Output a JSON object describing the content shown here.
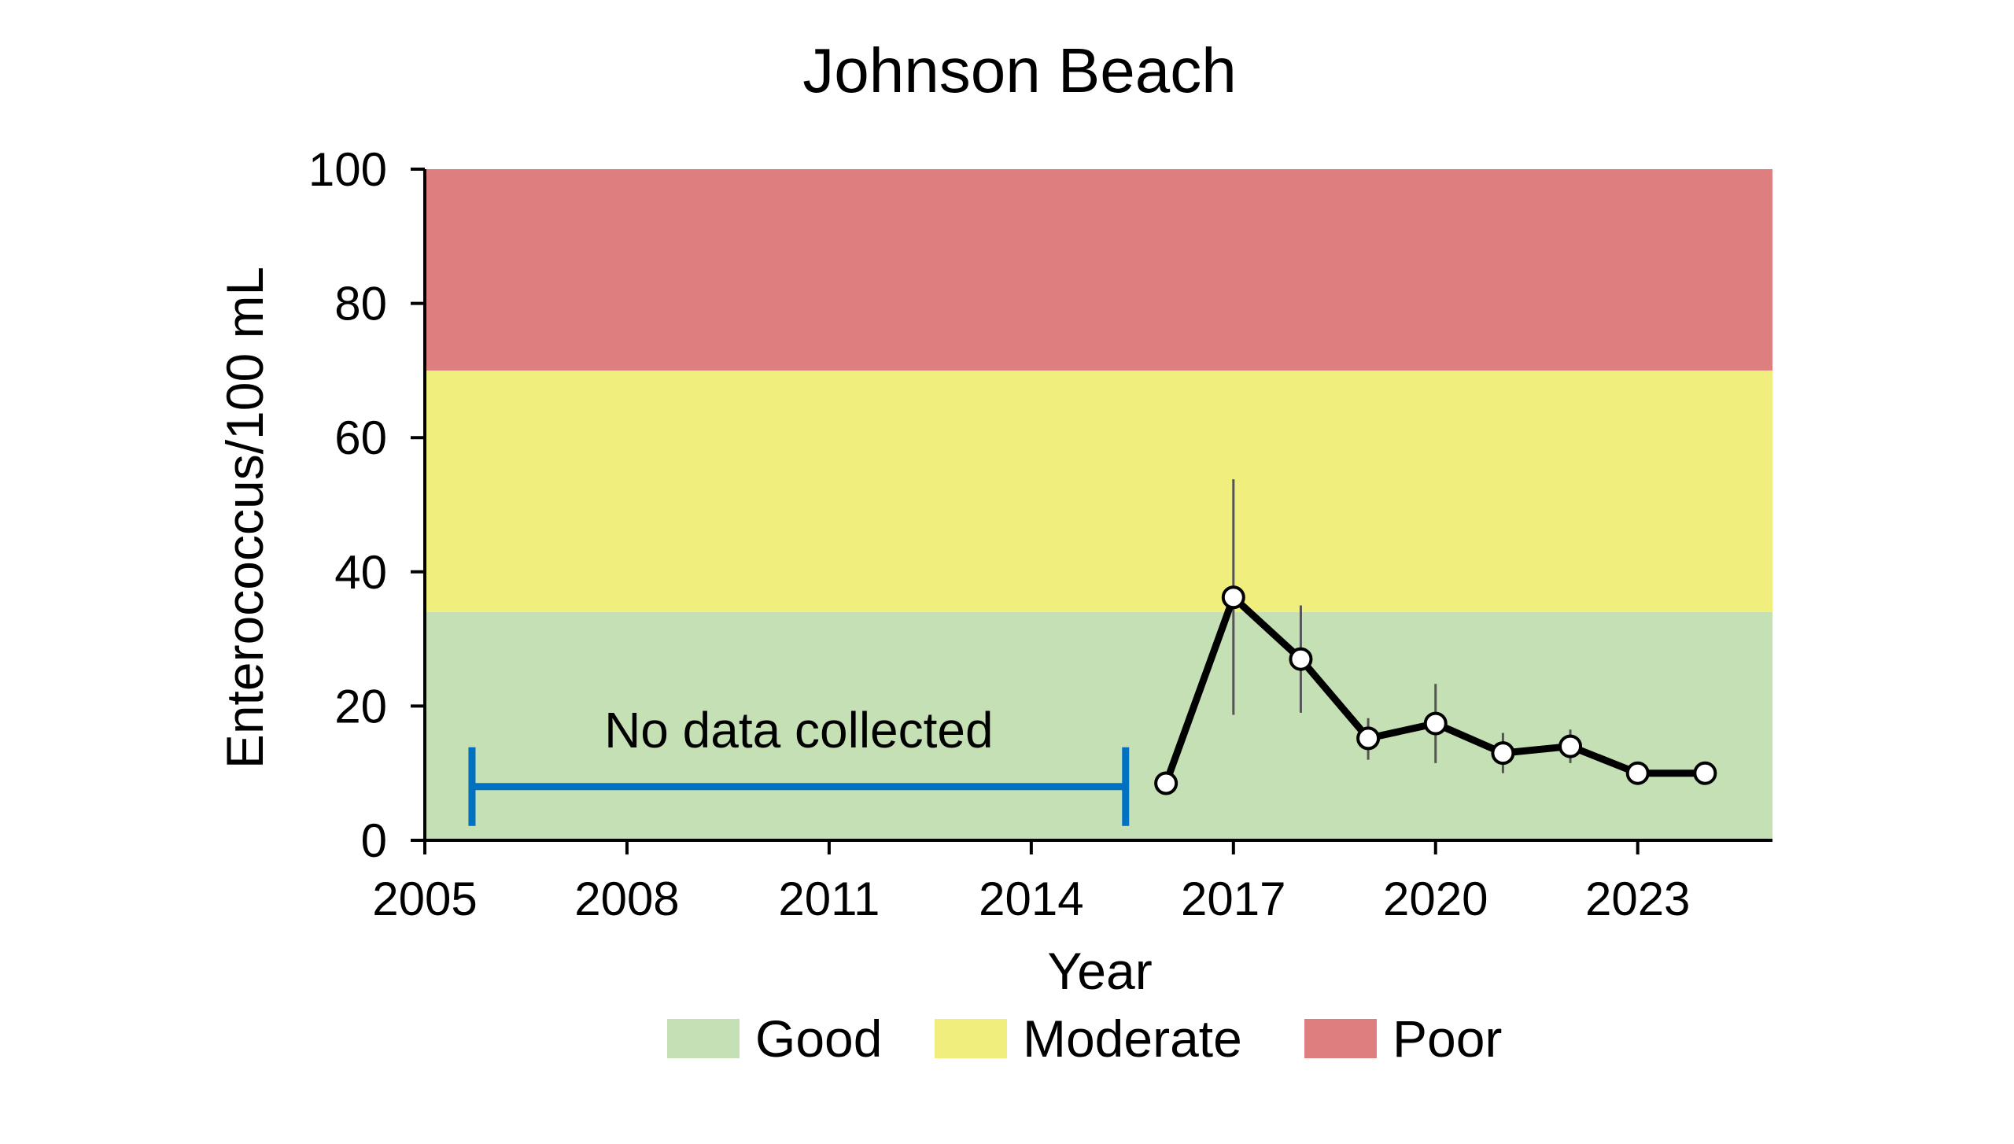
{
  "chart_data": {
    "type": "line",
    "title": "Johnson Beach",
    "xlabel": "Year",
    "ylabel": "Enterococcus/100 mL",
    "xlim": [
      2005,
      2025
    ],
    "ylim": [
      0,
      100
    ],
    "xticks": [
      2005,
      2008,
      2011,
      2014,
      2017,
      2020,
      2023
    ],
    "yticks": [
      0,
      20,
      40,
      60,
      80,
      100
    ],
    "grid": false,
    "bands": [
      {
        "name": "Good",
        "from": 0,
        "to": 34,
        "color": "#c5e0b4"
      },
      {
        "name": "Moderate",
        "from": 34,
        "to": 70,
        "color": "#f0ef7e"
      },
      {
        "name": "Poor",
        "from": 70,
        "to": 100,
        "color": "#df7e7e"
      }
    ],
    "series": [
      {
        "x": [
          2016,
          2017,
          2018,
          2019,
          2020,
          2021,
          2022,
          2023,
          2024
        ],
        "y": [
          8.5,
          36.2,
          27,
          15.2,
          17.4,
          13,
          14,
          10,
          10
        ],
        "err_low": [
          8.5,
          18.7,
          19,
          12,
          11.5,
          10,
          11.5,
          10,
          10
        ],
        "err_high": [
          8.5,
          53.8,
          35,
          18.2,
          23.3,
          16,
          16.5,
          10,
          10
        ],
        "color": "#000000"
      }
    ],
    "annotation": {
      "text": "No data collected",
      "x_start": 2005.7,
      "x_end": 2015.4,
      "y": 8,
      "color": "#0070c0"
    },
    "legend": {
      "placement": "bottom-center",
      "entries": [
        "Good",
        "Moderate",
        "Poor"
      ]
    }
  }
}
